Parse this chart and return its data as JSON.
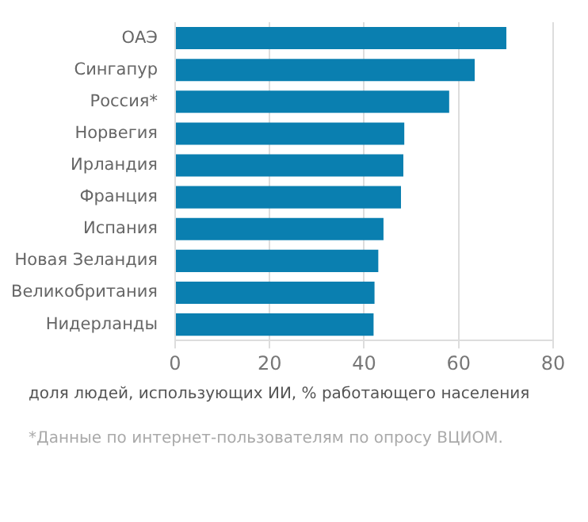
{
  "chart_data": {
    "type": "bar",
    "orientation": "horizontal",
    "categories": [
      "ОАЭ",
      "Сингапур",
      "Россия*",
      "Норвегия",
      "Ирландия",
      "Франция",
      "Испания",
      "Новая Зеландия",
      "Великобритания",
      "Нидерланды"
    ],
    "values": [
      70.1,
      63.4,
      58.0,
      48.5,
      48.3,
      47.8,
      44.1,
      43.0,
      42.2,
      42.0
    ],
    "color": "#0a7fb0",
    "xlim": [
      0,
      80
    ],
    "xticks": [
      0,
      20,
      40,
      60,
      80
    ],
    "grid": "x",
    "legend": false,
    "xlabel": "доля людей, использующих ИИ, % работающего населения",
    "annotations": [
      "*Данные по интернет-пользователям по опросу ВЦИОМ."
    ]
  }
}
